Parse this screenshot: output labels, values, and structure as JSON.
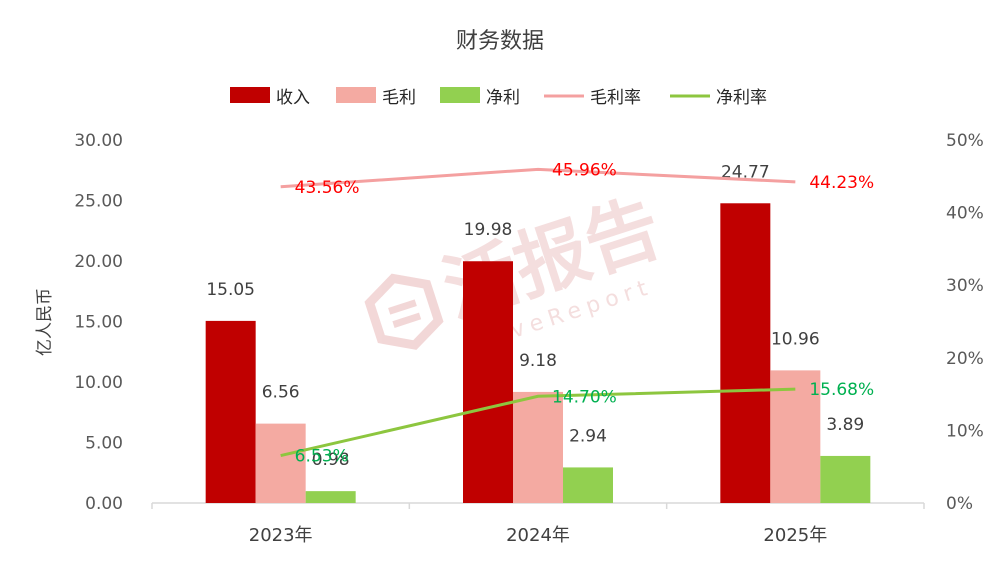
{
  "chart_data": {
    "type": "bar",
    "title": "财务数据",
    "ylabel": "亿人民币",
    "categories": [
      "2023年",
      "2024年",
      "2025年"
    ],
    "ylim": [
      0,
      30
    ],
    "y_ticks": [
      "0.00",
      "5.00",
      "10.00",
      "15.00",
      "20.00",
      "25.00",
      "30.00"
    ],
    "y2lim": [
      0,
      50
    ],
    "y2_ticks": [
      "0%",
      "10%",
      "20%",
      "30%",
      "40%",
      "50%"
    ],
    "legend_position": "top",
    "bar_series": [
      {
        "name": "收入",
        "color": "#c00000",
        "values": [
          15.05,
          19.98,
          24.77
        ],
        "labels": [
          "15.05",
          "19.98",
          "24.77"
        ]
      },
      {
        "name": "毛利",
        "color": "#f4aaa2",
        "values": [
          6.56,
          9.18,
          10.96
        ],
        "labels": [
          "6.56",
          "9.18",
          "10.96"
        ]
      },
      {
        "name": "净利",
        "color": "#92d050",
        "values": [
          0.98,
          2.94,
          3.89
        ],
        "labels": [
          "0.98",
          "2.94",
          "3.89"
        ]
      }
    ],
    "line_series": [
      {
        "name": "毛利率",
        "color": "#f4a0a0",
        "label_color": "#ff0000",
        "values": [
          43.56,
          45.96,
          44.23
        ],
        "labels": [
          "43.56%",
          "45.96%",
          "44.23%"
        ]
      },
      {
        "name": "净利率",
        "color": "#8dc63f",
        "label_color": "#00b050",
        "values": [
          6.53,
          14.7,
          15.68
        ],
        "labels": [
          "6.53%",
          "14.70%",
          "15.68%"
        ]
      }
    ],
    "grid": false
  },
  "watermark": {
    "text": "活报告",
    "subtext": "LiveReport",
    "color": "#e8c8c8"
  }
}
